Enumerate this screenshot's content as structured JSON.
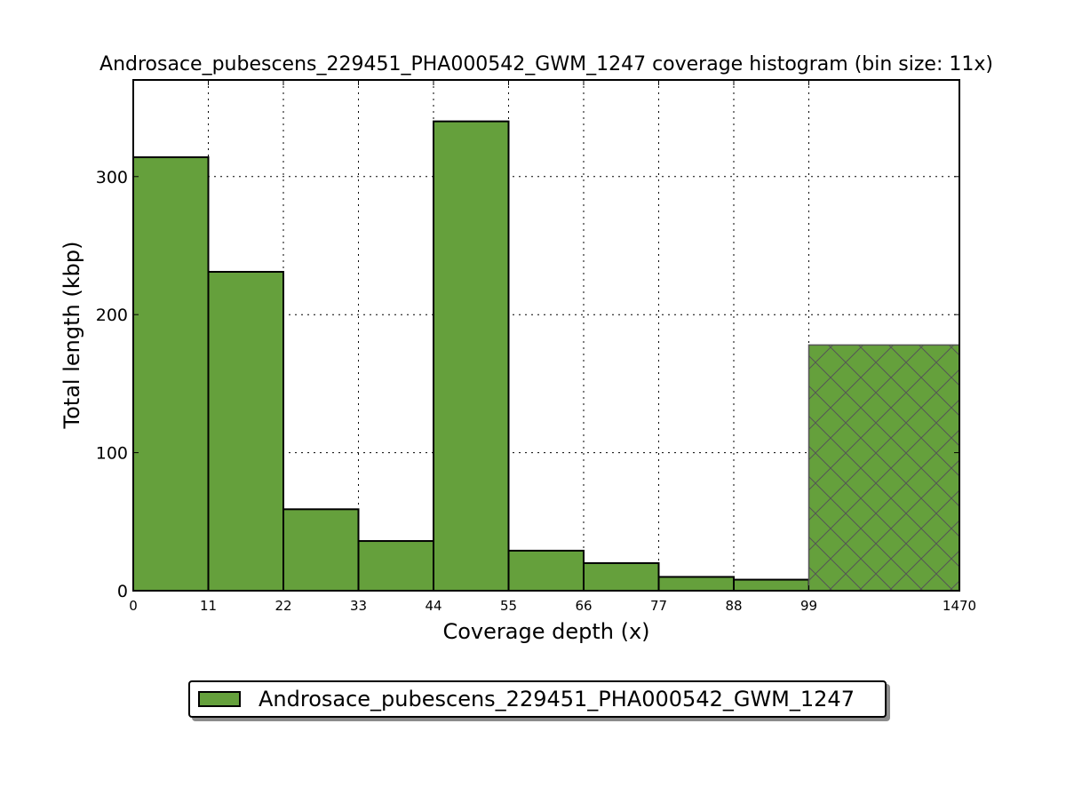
{
  "chart_data": {
    "type": "bar",
    "title": "Androsace_pubescens_229451_PHA000542_GWM_1247 coverage histogram (bin size: 11x)",
    "xlabel": "Coverage depth (x)",
    "ylabel": "Total length (kbp)",
    "x_tick_labels": [
      "0",
      "11",
      "22",
      "33",
      "44",
      "55",
      "66",
      "77",
      "88",
      "99",
      "1470"
    ],
    "y_ticks": [
      0,
      100,
      200,
      300
    ],
    "ylim": [
      0,
      370
    ],
    "grid": true,
    "bins": [
      {
        "start": "0",
        "end": "11",
        "value": 314
      },
      {
        "start": "11",
        "end": "22",
        "value": 231
      },
      {
        "start": "22",
        "end": "33",
        "value": 59
      },
      {
        "start": "33",
        "end": "44",
        "value": 36
      },
      {
        "start": "44",
        "end": "55",
        "value": 340
      },
      {
        "start": "55",
        "end": "66",
        "value": 29
      },
      {
        "start": "66",
        "end": "77",
        "value": 20
      },
      {
        "start": "77",
        "end": "88",
        "value": 10
      },
      {
        "start": "88",
        "end": "99",
        "value": 8
      },
      {
        "start": "99",
        "end": "1470",
        "value": 178,
        "hatched": true
      }
    ],
    "series": [
      {
        "name": "Androsace_pubescens_229451_PHA000542_GWM_1247",
        "color": "#65a03c"
      }
    ],
    "legend_position": "bottom-center"
  }
}
